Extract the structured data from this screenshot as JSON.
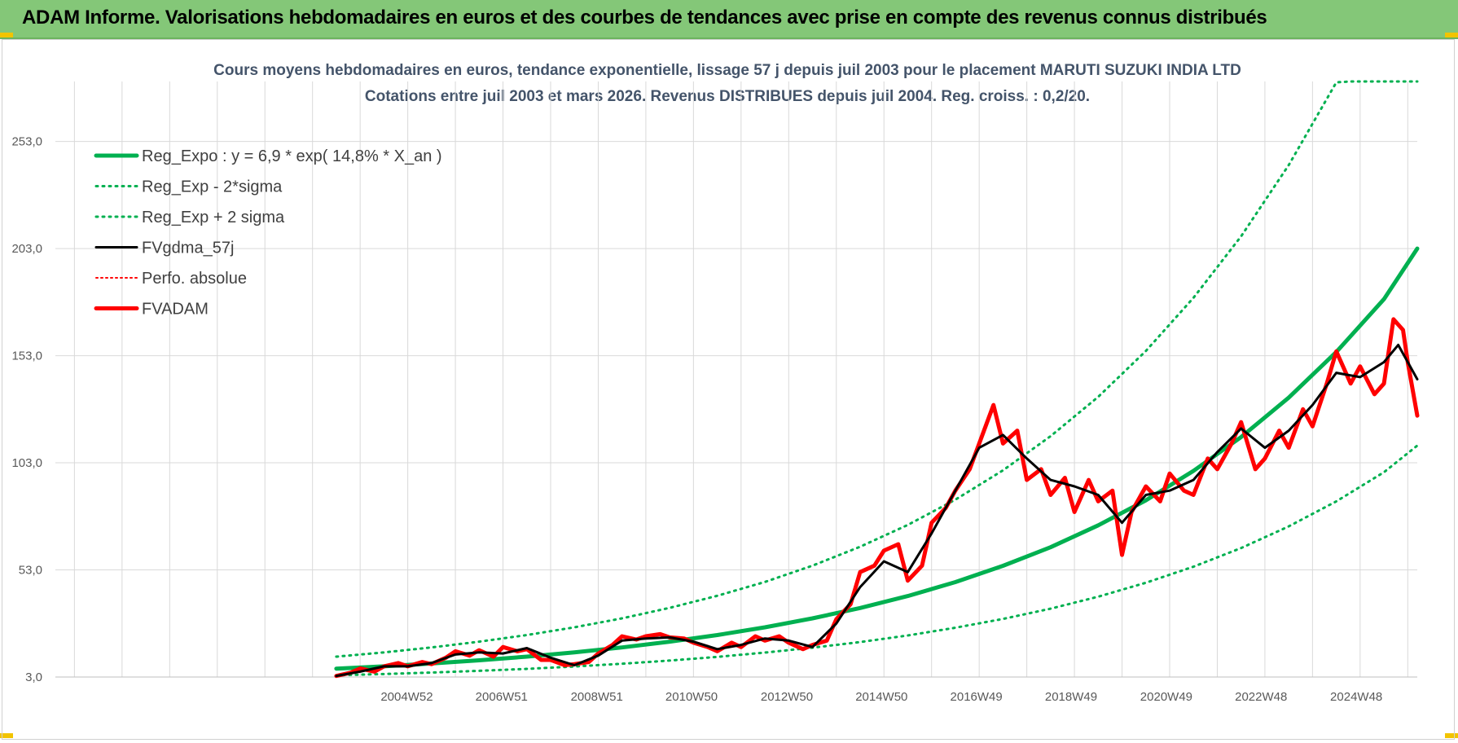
{
  "banner": {
    "title": "ADAM Informe. Valorisations hebdomadaires en euros et des courbes de tendances avec prise en compte des revenus connus distribués"
  },
  "colors": {
    "banner_bg": "#84c778",
    "trend_green": "#00b050",
    "price_red": "#ff0000",
    "smooth_black": "#000000",
    "title_text": "#44546a",
    "grid": "#d9d9d9"
  },
  "chart_data": {
    "type": "line",
    "title": "Cours moyens hebdomadaires en euros, tendance exponentielle, lissage 57 j depuis juil 2003 pour le placement MARUTI SUZUKI INDIA LTD",
    "subtitle": "Cotations entre juil 2003 et mars 2026. Revenus DISTRIBUES depuis juil 2004. Reg. croiss. : 0,2/20.",
    "xlabel": "",
    "ylabel": "",
    "xlim": [
      1997.6,
      2026.2
    ],
    "ylim": [
      3.0,
      281.0
    ],
    "y_ticks": [
      3.0,
      53.0,
      103.0,
      153.0,
      203.0,
      253.0
    ],
    "y_tick_labels": [
      "3,0",
      "53,0",
      "103,0",
      "153,0",
      "203,0",
      "253,0"
    ],
    "x_ticks": [
      2004.98,
      2006.97,
      2008.97,
      2010.96,
      2012.96,
      2014.95,
      2016.94,
      2018.93,
      2020.93,
      2022.92,
      2024.92
    ],
    "x_tick_labels": [
      "2004W52",
      "2006W51",
      "2008W51",
      "2010W50",
      "2012W50",
      "2014W50",
      "2016W49",
      "2018W49",
      "2020W49",
      "2022W48",
      "2024W48"
    ],
    "grid": true,
    "legend_position": "top-left",
    "legend": [
      {
        "label": "Reg_Expo : y = 6,9 * exp( 14,8% *  X_an )",
        "color": "#00b050",
        "style": "solid",
        "width": 5
      },
      {
        "label": "Reg_Exp - 2*sigma",
        "color": "#00b050",
        "style": "dotted",
        "width": 3
      },
      {
        "label": "Reg_Exp + 2 sigma",
        "color": "#00b050",
        "style": "dotted",
        "width": 3
      },
      {
        "label": "FVgdma_57j",
        "color": "#000000",
        "style": "solid",
        "width": 3
      },
      {
        "label": "Perfo. absolue",
        "color": "#ff0000",
        "style": "dotted",
        "width": 2
      },
      {
        "label": "FVADAM",
        "color": "#ff0000",
        "style": "solid",
        "width": 5
      }
    ],
    "series": [
      {
        "name": "Reg_Expo : y = 6,9 * exp( 14,8% *  X_an )",
        "x": [
          2003.5,
          2004.5,
          2005.5,
          2006.5,
          2007.5,
          2008.5,
          2009.5,
          2010.5,
          2011.5,
          2012.5,
          2013.5,
          2014.5,
          2015.5,
          2016.5,
          2017.5,
          2018.5,
          2019.5,
          2020.5,
          2021.5,
          2022.5,
          2023.5,
          2024.5,
          2025.5,
          2026.2
        ],
        "values": [
          6.9,
          8.0,
          9.3,
          10.8,
          12.5,
          14.5,
          16.8,
          19.5,
          22.6,
          26.2,
          30.4,
          35.2,
          40.8,
          47.3,
          54.9,
          63.6,
          73.8,
          85.5,
          99.2,
          115.0,
          133.4,
          154.7,
          179.4,
          203.0
        ]
      },
      {
        "name": "Reg_Exp - 2*sigma",
        "x": [
          2003.5,
          2004.5,
          2005.5,
          2006.5,
          2007.5,
          2008.5,
          2009.5,
          2010.5,
          2011.5,
          2012.5,
          2013.5,
          2014.5,
          2015.5,
          2016.5,
          2017.5,
          2018.5,
          2019.5,
          2020.5,
          2021.5,
          2022.5,
          2023.5,
          2024.5,
          2025.5,
          2026.2
        ],
        "values": [
          3.8,
          4.4,
          5.1,
          5.9,
          6.8,
          7.9,
          9.2,
          10.7,
          12.4,
          14.4,
          16.7,
          19.3,
          22.4,
          26.0,
          30.1,
          34.9,
          40.5,
          47.0,
          54.5,
          63.2,
          73.3,
          85.0,
          98.6,
          111.0
        ]
      },
      {
        "name": "Reg_Exp + 2 sigma",
        "x": [
          2003.5,
          2004.5,
          2005.5,
          2006.5,
          2007.5,
          2008.5,
          2009.5,
          2010.5,
          2011.5,
          2012.5,
          2013.5,
          2014.5,
          2015.5,
          2016.5,
          2017.5,
          2018.5,
          2019.5,
          2020.5,
          2021.5,
          2022.5,
          2023.5,
          2024.5,
          2024.8,
          2025.5,
          2026.2
        ],
        "values": [
          12.5,
          14.5,
          16.8,
          19.5,
          22.6,
          26.2,
          30.4,
          35.3,
          40.9,
          47.4,
          55.0,
          63.8,
          74.0,
          85.8,
          99.5,
          115.4,
          133.8,
          155.2,
          180.0,
          208.7,
          242.0,
          280.6,
          281.0,
          281.0,
          281.0
        ]
      },
      {
        "name": "FVgdma_57j",
        "x": [
          2003.5,
          2004.0,
          2004.5,
          2005.0,
          2005.5,
          2006.0,
          2006.5,
          2007.0,
          2007.5,
          2008.0,
          2008.5,
          2009.0,
          2009.5,
          2010.0,
          2010.5,
          2011.0,
          2011.5,
          2012.0,
          2012.5,
          2013.0,
          2013.5,
          2014.0,
          2014.5,
          2015.0,
          2015.5,
          2016.0,
          2016.5,
          2017.0,
          2017.5,
          2018.0,
          2018.5,
          2019.0,
          2019.5,
          2020.0,
          2020.5,
          2021.0,
          2021.5,
          2022.0,
          2022.5,
          2023.0,
          2023.5,
          2024.0,
          2024.5,
          2025.0,
          2025.5,
          2025.8,
          2026.2
        ],
        "values": [
          3.5,
          5.5,
          8.0,
          8.0,
          9.5,
          13.5,
          14.5,
          14.0,
          16.5,
          12.0,
          8.5,
          13.0,
          20.0,
          21.0,
          21.5,
          19.5,
          16.0,
          18.0,
          21.0,
          20.0,
          17.0,
          28.0,
          45.0,
          57.0,
          52.0,
          70.0,
          90.0,
          110.0,
          116.0,
          105.0,
          95.0,
          92.0,
          88.0,
          75.0,
          88.0,
          90.0,
          95.0,
          108.0,
          119.0,
          110.0,
          118.0,
          130.0,
          145.0,
          143.0,
          150.0,
          158.0,
          142.0
        ]
      },
      {
        "name": "FVADAM",
        "x": [
          2003.5,
          2003.8,
          2004.0,
          2004.3,
          2004.5,
          2004.8,
          2005.0,
          2005.3,
          2005.5,
          2005.8,
          2006.0,
          2006.3,
          2006.5,
          2006.8,
          2007.0,
          2007.3,
          2007.5,
          2007.8,
          2008.0,
          2008.3,
          2008.5,
          2008.8,
          2009.0,
          2009.3,
          2009.5,
          2009.8,
          2010.0,
          2010.3,
          2010.5,
          2010.8,
          2011.0,
          2011.3,
          2011.5,
          2011.8,
          2012.0,
          2012.3,
          2012.5,
          2012.8,
          2013.0,
          2013.3,
          2013.5,
          2013.8,
          2014.0,
          2014.3,
          2014.5,
          2014.8,
          2015.0,
          2015.3,
          2015.5,
          2015.8,
          2016.0,
          2016.3,
          2016.5,
          2016.8,
          2017.0,
          2017.3,
          2017.5,
          2017.8,
          2018.0,
          2018.3,
          2018.5,
          2018.8,
          2019.0,
          2019.3,
          2019.5,
          2019.8,
          2020.0,
          2020.2,
          2020.5,
          2020.8,
          2021.0,
          2021.3,
          2021.5,
          2021.8,
          2022.0,
          2022.3,
          2022.5,
          2022.8,
          2023.0,
          2023.3,
          2023.5,
          2023.8,
          2024.0,
          2024.3,
          2024.5,
          2024.8,
          2025.0,
          2025.3,
          2025.5,
          2025.7,
          2025.9,
          2026.0,
          2026.2
        ],
        "values": [
          3.5,
          5.0,
          7.0,
          5.5,
          8.0,
          9.5,
          8.0,
          10.0,
          9.0,
          12.0,
          15.0,
          13.0,
          15.5,
          12.5,
          17.0,
          15.0,
          16.0,
          11.0,
          11.0,
          8.5,
          9.0,
          10.0,
          14.0,
          18.0,
          22.0,
          20.5,
          22.0,
          23.0,
          21.5,
          21.0,
          19.0,
          17.0,
          15.0,
          19.0,
          17.0,
          22.0,
          20.0,
          22.0,
          19.0,
          16.0,
          18.0,
          20.0,
          30.0,
          37.0,
          52.0,
          55.0,
          62.0,
          65.0,
          48.0,
          55.0,
          75.0,
          82.0,
          90.0,
          100.0,
          112.0,
          130.0,
          112.0,
          118.0,
          95.0,
          100.0,
          88.0,
          96.0,
          80.0,
          95.0,
          85.0,
          90.0,
          60.0,
          80.0,
          92.0,
          85.0,
          98.0,
          90.0,
          88.0,
          105.0,
          100.0,
          112.0,
          122.0,
          100.0,
          105.0,
          118.0,
          110.0,
          128.0,
          120.0,
          140.0,
          155.0,
          140.0,
          148.0,
          135.0,
          140.0,
          170.0,
          165.0,
          150.0,
          125.0
        ]
      }
    ]
  }
}
